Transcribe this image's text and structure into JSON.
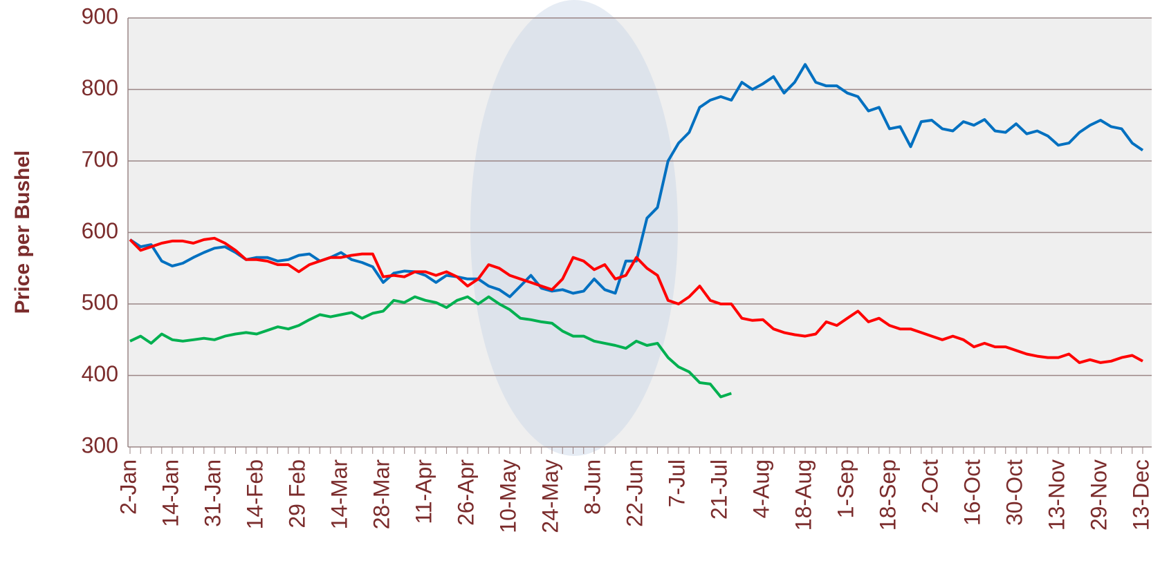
{
  "chart_data": {
    "type": "line",
    "y_label": "Price per Bushel",
    "categories": [
      "2-Jan",
      null,
      null,
      null,
      "14-Jan",
      null,
      null,
      null,
      "31-Jan",
      null,
      null,
      null,
      "14-Feb",
      null,
      null,
      null,
      "29 Feb",
      null,
      null,
      null,
      "14-Mar",
      null,
      null,
      null,
      "28-Mar",
      null,
      null,
      null,
      "11-Apr",
      null,
      null,
      null,
      "26-Apr",
      null,
      null,
      null,
      "10-May",
      null,
      null,
      null,
      "24-May",
      null,
      null,
      null,
      "8-Jun",
      null,
      null,
      null,
      "22-Jun",
      null,
      null,
      null,
      "7-Jul",
      null,
      null,
      null,
      "21-Jul",
      null,
      null,
      null,
      "4-Aug",
      null,
      null,
      null,
      "18-Aug",
      null,
      null,
      null,
      "1-Sep",
      null,
      null,
      null,
      "18-Sep",
      null,
      null,
      null,
      "2-Oct",
      null,
      null,
      null,
      "16-Oct",
      null,
      null,
      null,
      "30-Oct",
      null,
      null,
      null,
      "13-Nov",
      null,
      null,
      null,
      "29-Nov",
      null,
      null,
      null,
      "13-Dec"
    ],
    "series": [
      {
        "color": "#0070c0",
        "values": [
          590,
          580,
          583,
          560,
          553,
          557,
          565,
          572,
          578,
          580,
          572,
          562,
          565,
          565,
          560,
          562,
          568,
          570,
          560,
          565,
          572,
          562,
          558,
          552,
          530,
          543,
          546,
          545,
          540,
          530,
          540,
          538,
          535,
          535,
          525,
          520,
          510,
          525,
          540,
          522,
          518,
          520,
          515,
          518,
          535,
          520,
          515,
          560,
          560,
          620,
          635,
          700,
          725,
          740,
          775,
          785,
          790,
          785,
          810,
          800,
          808,
          818,
          795,
          810,
          835,
          810,
          805,
          805,
          795,
          790,
          770,
          775,
          745,
          748,
          720,
          755,
          757,
          745,
          742,
          755,
          750,
          758,
          742,
          740,
          752,
          738,
          742,
          735,
          722,
          725,
          740,
          750,
          757,
          748,
          745,
          725,
          715
        ]
      },
      {
        "color": "#ff0000",
        "values": [
          590,
          575,
          580,
          585,
          588,
          588,
          585,
          590,
          592,
          585,
          575,
          562,
          562,
          560,
          555,
          555,
          545,
          555,
          560,
          565,
          565,
          568,
          570,
          570,
          538,
          540,
          538,
          545,
          545,
          540,
          545,
          538,
          525,
          535,
          555,
          550,
          540,
          535,
          530,
          525,
          520,
          535,
          565,
          560,
          548,
          555,
          535,
          540,
          565,
          550,
          540,
          505,
          500,
          510,
          525,
          505,
          500,
          500,
          480,
          477,
          478,
          465,
          460,
          457,
          455,
          458,
          475,
          470,
          480,
          490,
          475,
          480,
          470,
          465,
          465,
          460,
          455,
          450,
          455,
          450,
          440,
          445,
          440,
          440,
          435,
          430,
          427,
          425,
          425,
          430,
          418,
          422,
          418,
          420,
          425,
          428,
          420
        ]
      },
      {
        "color": "#00b050",
        "values": [
          448,
          455,
          445,
          458,
          450,
          448,
          450,
          452,
          450,
          455,
          458,
          460,
          458,
          463,
          468,
          465,
          470,
          478,
          485,
          482,
          485,
          488,
          480,
          487,
          490,
          505,
          502,
          510,
          505,
          502,
          495,
          505,
          510,
          500,
          510,
          500,
          492,
          480,
          478,
          475,
          473,
          462,
          455,
          455,
          448,
          445,
          442,
          438,
          448,
          442,
          445,
          425,
          412,
          405,
          390,
          388,
          370,
          375,
          null,
          null,
          null,
          null,
          null,
          null,
          null,
          null,
          null,
          null,
          null,
          null,
          null,
          null,
          null,
          null,
          null,
          null,
          null,
          null,
          null,
          null,
          null,
          null,
          null,
          null,
          null,
          null,
          null,
          null,
          null,
          null,
          null,
          null,
          null,
          null,
          null,
          null,
          null
        ]
      }
    ],
    "ylim": [
      300,
      900
    ],
    "yticks": [
      300,
      400,
      500,
      600,
      700,
      800,
      900
    ],
    "grid": true
  }
}
